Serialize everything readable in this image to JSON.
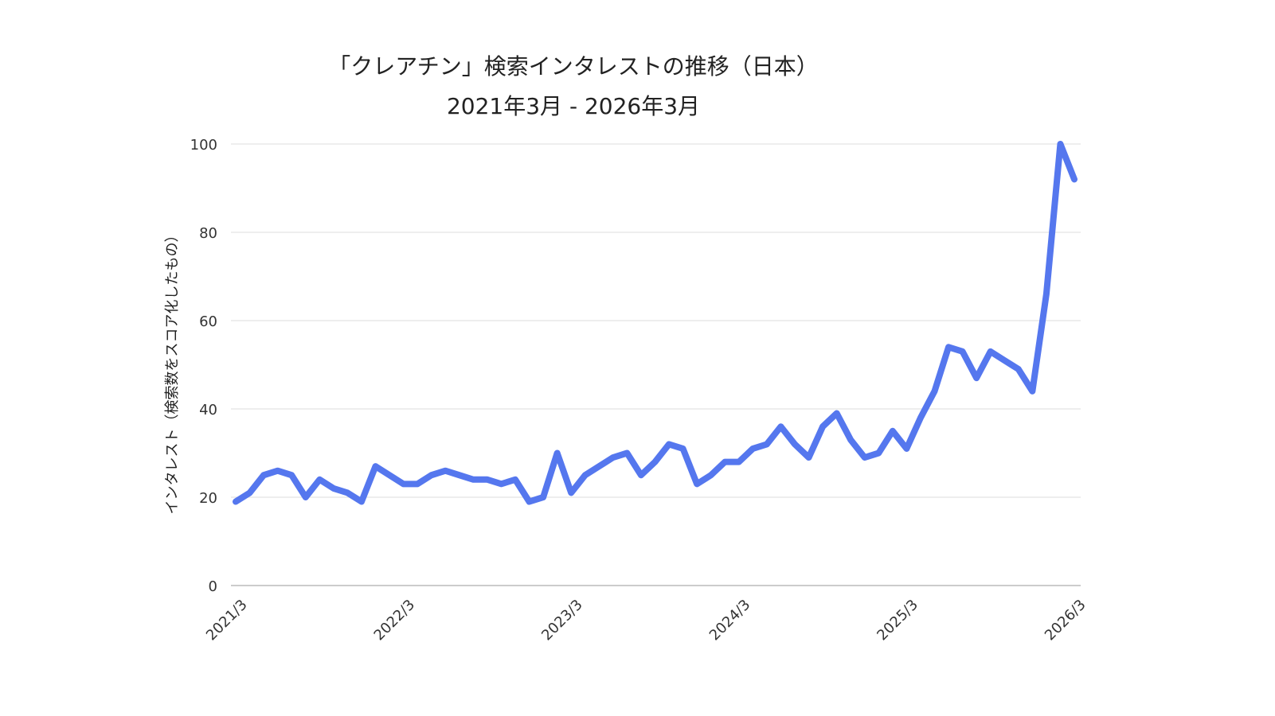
{
  "chart_data": {
    "type": "line",
    "title": "「クレアチン」検索インタレストの推移（日本）",
    "subtitle": "2021年3月 - 2026年3月",
    "xlabel": "",
    "ylabel": "インタレスト（検索数をスコア化したもの）",
    "ylim": [
      0,
      100
    ],
    "yticks": [
      "0",
      "20",
      "40",
      "60",
      "80",
      "100"
    ],
    "xticks": [
      "2021/3",
      "2022/3",
      "2023/3",
      "2024/3",
      "2025/3",
      "2026/3"
    ],
    "grid": true,
    "color": "#5577ee",
    "series": [
      {
        "name": "クレアチン",
        "values": [
          19,
          21,
          25,
          26,
          25,
          20,
          24,
          22,
          21,
          19,
          27,
          25,
          23,
          23,
          25,
          26,
          25,
          24,
          24,
          23,
          24,
          19,
          20,
          30,
          21,
          25,
          27,
          29,
          30,
          25,
          28,
          32,
          31,
          23,
          25,
          28,
          28,
          31,
          32,
          36,
          32,
          29,
          36,
          39,
          33,
          29,
          30,
          35,
          31,
          38,
          44,
          54,
          53,
          47,
          53,
          51,
          49,
          44,
          66,
          100,
          92
        ]
      }
    ]
  }
}
